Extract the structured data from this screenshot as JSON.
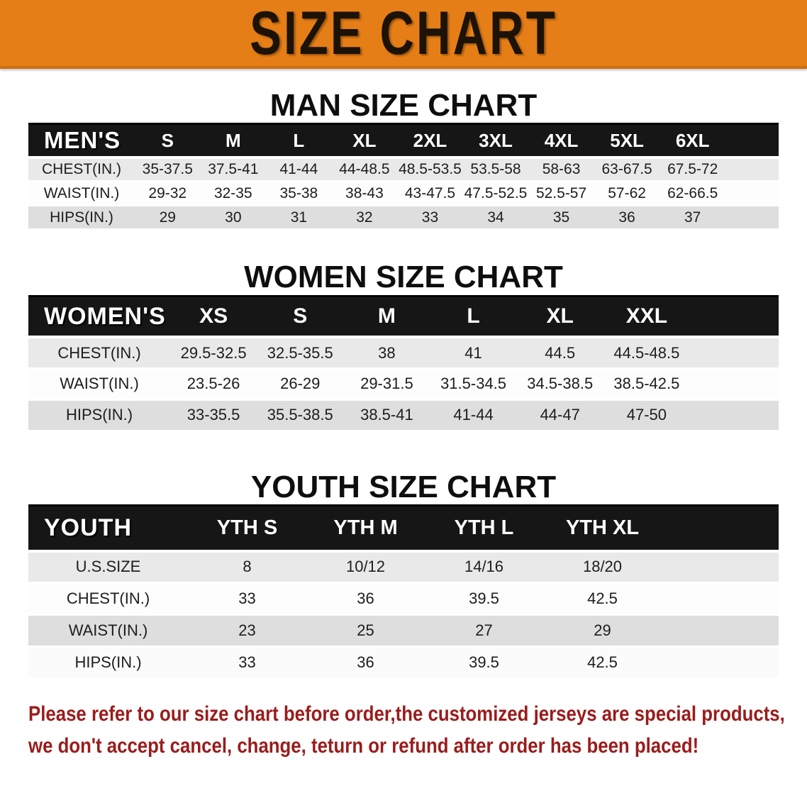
{
  "banner": {
    "title": "SIZE CHART",
    "bg_color": "#E67E17",
    "text_color": "#1C1206"
  },
  "sections": [
    {
      "heading": "MAN SIZE CHART",
      "header_label": "MEN'S",
      "columns": [
        "S",
        "M",
        "L",
        "XL",
        "2XL",
        "3XL",
        "4XL",
        "5XL",
        "6XL"
      ],
      "rows": [
        {
          "label": "CHEST(IN.)",
          "values": [
            "35-37.5",
            "37.5-41",
            "41-44",
            "44-48.5",
            "48.5-53.5",
            "53.5-58",
            "58-63",
            "63-67.5",
            "67.5-72"
          ]
        },
        {
          "label": "WAIST(IN.)",
          "values": [
            "29-32",
            "32-35",
            "35-38",
            "38-43",
            "43-47.5",
            "47.5-52.5",
            "52.5-57",
            "57-62",
            "62-66.5"
          ]
        },
        {
          "label": "HIPS(IN.)",
          "values": [
            "29",
            "30",
            "31",
            "32",
            "33",
            "34",
            "35",
            "36",
            "37"
          ]
        }
      ]
    },
    {
      "heading": "WOMEN SIZE CHART",
      "header_label": "WOMEN'S",
      "columns": [
        "XS",
        "S",
        "M",
        "L",
        "XL",
        "XXL"
      ],
      "rows": [
        {
          "label": "CHEST(IN.)",
          "values": [
            "29.5-32.5",
            "32.5-35.5",
            "38",
            "41",
            "44.5",
            "44.5-48.5"
          ]
        },
        {
          "label": "WAIST(IN.)",
          "values": [
            "23.5-26",
            "26-29",
            "29-31.5",
            "31.5-34.5",
            "34.5-38.5",
            "38.5-42.5"
          ]
        },
        {
          "label": "HIPS(IN.)",
          "values": [
            "33-35.5",
            "35.5-38.5",
            "38.5-41",
            "41-44",
            "44-47",
            "47-50"
          ]
        }
      ]
    },
    {
      "heading": "YOUTH SIZE CHART",
      "header_label": "YOUTH",
      "columns": [
        "YTH S",
        "YTH M",
        "YTH L",
        "YTH XL"
      ],
      "rows": [
        {
          "label": "U.S.SIZE",
          "values": [
            "8",
            "10/12",
            "14/16",
            "18/20"
          ]
        },
        {
          "label": "CHEST(IN.)",
          "values": [
            "33",
            "36",
            "39.5",
            "42.5"
          ]
        },
        {
          "label": "WAIST(IN.)",
          "values": [
            "23",
            "25",
            "27",
            "29"
          ]
        },
        {
          "label": "HIPS(IN.)",
          "values": [
            "33",
            "36",
            "39.5",
            "42.5"
          ]
        }
      ]
    }
  ],
  "disclaimer": {
    "line1": "Please refer to our size chart before order,the customized jerseys are special products,",
    "line2": "we don't accept cancel, change, teturn or refund after order has been placed!",
    "color": "#9A1C1C"
  }
}
